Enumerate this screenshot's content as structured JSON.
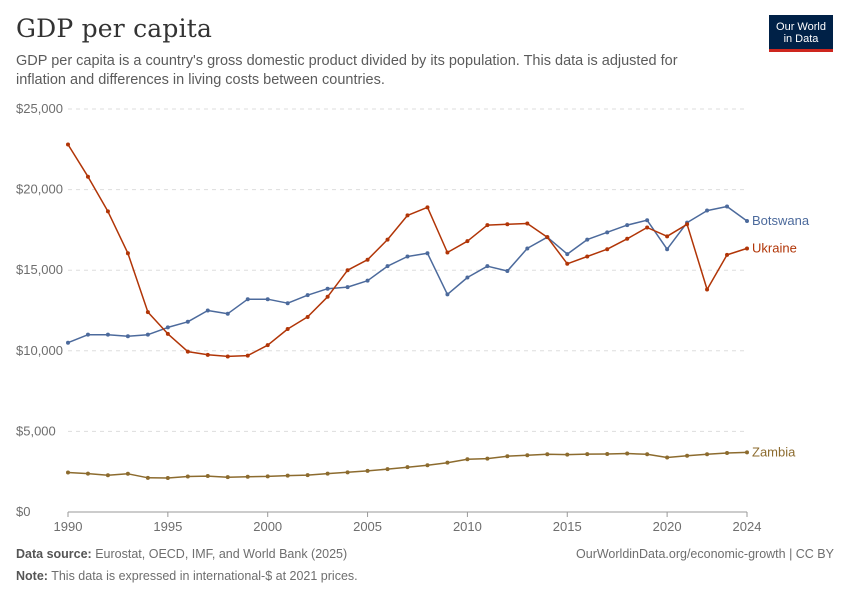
{
  "header": {
    "title": "GDP per capita",
    "subtitle": "GDP per capita is a country's gross domestic product divided by its population. This data is adjusted for inflation and differences in living costs between countries.",
    "logo_line1": "Our World",
    "logo_line2": "in Data"
  },
  "footer": {
    "source_label": "Data source:",
    "source_text": "Eurostat, OECD, IMF, and World Bank (2025)",
    "credit": "OurWorldinData.org/economic-growth | CC BY",
    "note_label": "Note:",
    "note_text": "This data is expressed in international-$ at 2021 prices."
  },
  "chart_data": {
    "type": "line",
    "title": "GDP per capita",
    "xlabel": "",
    "ylabel": "",
    "xlim": [
      1990,
      2024
    ],
    "ylim": [
      0,
      25000
    ],
    "grid": true,
    "legend_placement": "right (labels at line ends)",
    "x_ticks": [
      1990,
      1995,
      2000,
      2005,
      2010,
      2015,
      2020,
      2024
    ],
    "y_ticks": [
      0,
      5000,
      10000,
      15000,
      20000,
      25000
    ],
    "y_tick_labels": [
      "$0",
      "$5,000",
      "$10,000",
      "$15,000",
      "$20,000",
      "$25,000"
    ],
    "x": [
      1990,
      1991,
      1992,
      1993,
      1994,
      1995,
      1996,
      1997,
      1998,
      1999,
      2000,
      2001,
      2002,
      2003,
      2004,
      2005,
      2006,
      2007,
      2008,
      2009,
      2010,
      2011,
      2012,
      2013,
      2014,
      2015,
      2016,
      2017,
      2018,
      2019,
      2020,
      2021,
      2022,
      2023,
      2024
    ],
    "series": [
      {
        "name": "Botswana",
        "color": "#4c6a9c",
        "values": [
          10500,
          11000,
          11000,
          10900,
          11000,
          11450,
          11800,
          12500,
          12300,
          13200,
          13200,
          12950,
          13450,
          13850,
          13950,
          14350,
          15250,
          15850,
          16050,
          13500,
          14550,
          15250,
          14950,
          16350,
          17050,
          16000,
          16900,
          17350,
          17800,
          18100,
          16300,
          17950,
          18700,
          18950,
          18050
        ]
      },
      {
        "name": "Ukraine",
        "color": "#b13507",
        "values": [
          22800,
          20800,
          18650,
          16050,
          12400,
          11050,
          9950,
          9750,
          9650,
          9700,
          10350,
          11350,
          12100,
          13350,
          15000,
          15650,
          16900,
          18400,
          18900,
          16100,
          16800,
          17800,
          17850,
          17900,
          17050,
          15400,
          15850,
          16300,
          16950,
          17650,
          17100,
          17850,
          13800,
          15950,
          16350
        ]
      },
      {
        "name": "Zambia",
        "color": "#8c6b2e",
        "values": [
          2450,
          2380,
          2280,
          2370,
          2120,
          2110,
          2200,
          2230,
          2160,
          2190,
          2210,
          2260,
          2290,
          2380,
          2460,
          2550,
          2660,
          2780,
          2900,
          3060,
          3270,
          3310,
          3460,
          3520,
          3580,
          3560,
          3590,
          3600,
          3630,
          3580,
          3380,
          3490,
          3580,
          3660,
          3700
        ]
      }
    ]
  }
}
